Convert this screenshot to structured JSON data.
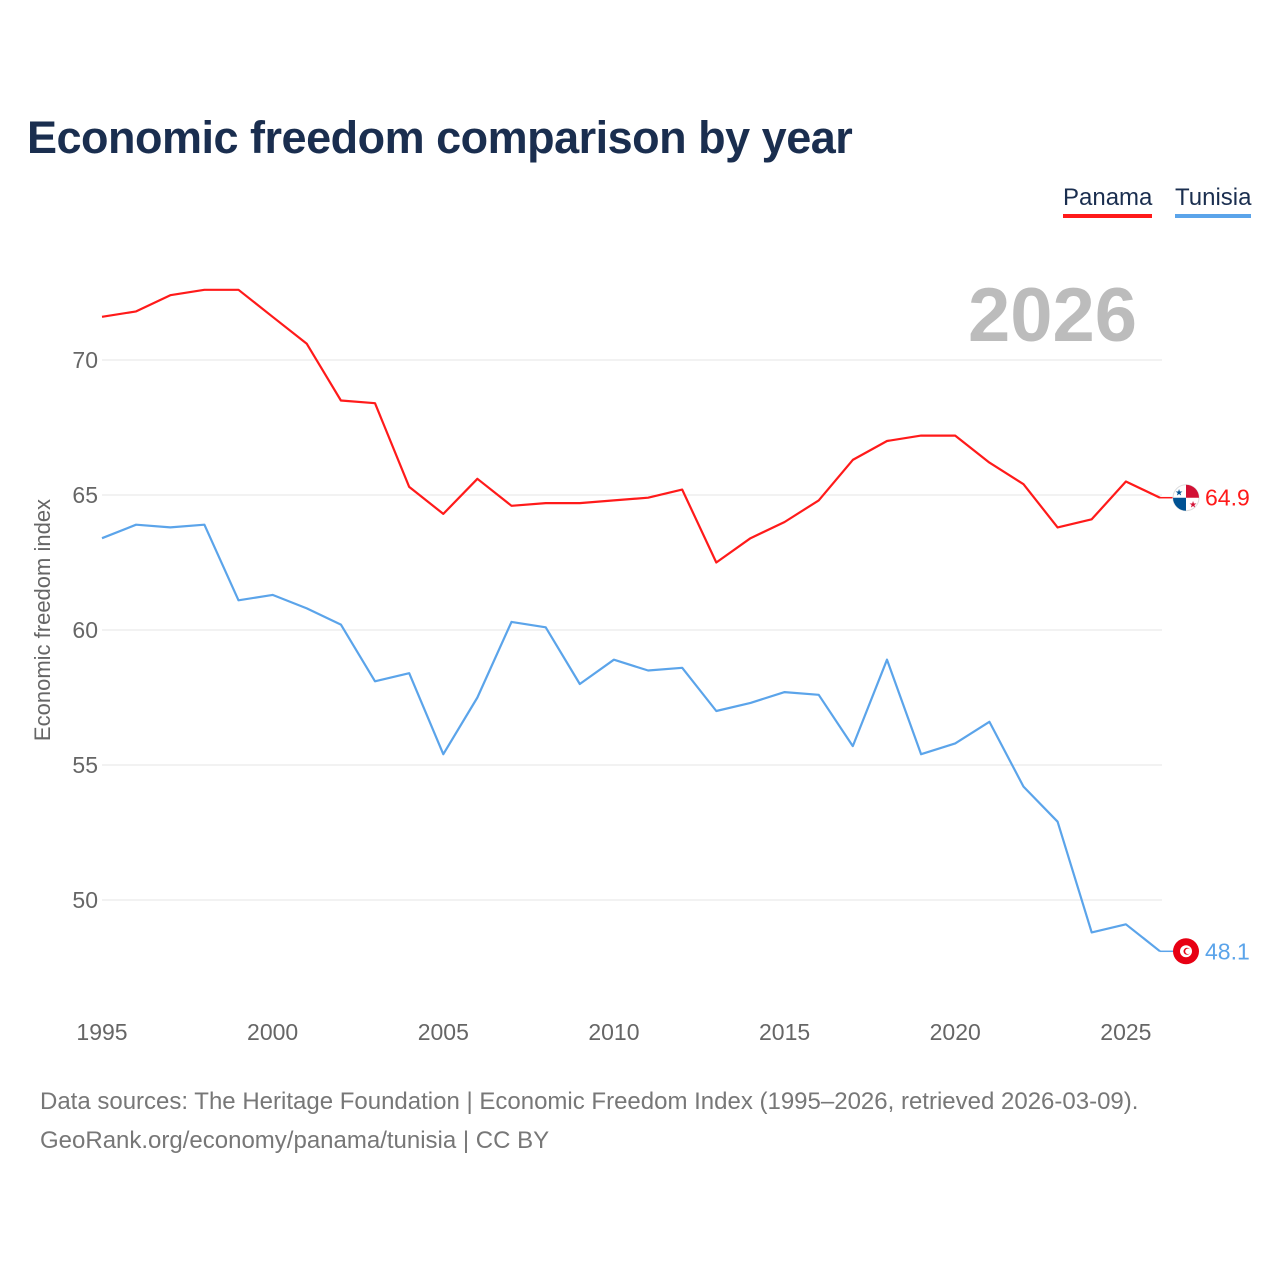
{
  "chart_data": {
    "type": "line",
    "title": "Economic freedom comparison by year",
    "ylabel": "Economic freedom index",
    "xlabel": "",
    "current_year": "2026",
    "x": [
      1995,
      1996,
      1997,
      1998,
      1999,
      2000,
      2001,
      2002,
      2003,
      2004,
      2005,
      2006,
      2007,
      2008,
      2009,
      2010,
      2011,
      2012,
      2013,
      2014,
      2015,
      2016,
      2017,
      2018,
      2019,
      2020,
      2021,
      2022,
      2023,
      2024,
      2025,
      2026
    ],
    "xlim": [
      1995,
      2026
    ],
    "ylim": [
      46,
      73.5
    ],
    "xticks": [
      "1995",
      "2000",
      "2005",
      "2010",
      "2015",
      "2020",
      "2025"
    ],
    "yticks": [
      "50",
      "55",
      "60",
      "65",
      "70"
    ],
    "grid": true,
    "legend_position": "top-right",
    "series": [
      {
        "name": "Panama",
        "color": "#ff1a1a",
        "end_label": "64.9",
        "values": [
          71.6,
          71.8,
          72.4,
          72.6,
          72.6,
          71.6,
          70.6,
          68.5,
          68.4,
          65.3,
          64.3,
          65.6,
          64.6,
          64.7,
          64.7,
          64.8,
          64.9,
          65.2,
          62.5,
          63.4,
          64.0,
          64.8,
          66.3,
          67.0,
          67.2,
          67.2,
          66.2,
          65.4,
          63.8,
          64.1,
          65.5,
          64.9
        ]
      },
      {
        "name": "Tunisia",
        "color": "#5ba4ea",
        "end_label": "48.1",
        "values": [
          63.4,
          63.9,
          63.8,
          63.9,
          61.1,
          61.3,
          60.8,
          60.2,
          58.1,
          58.4,
          55.4,
          57.5,
          60.3,
          60.1,
          58.0,
          58.9,
          58.5,
          58.6,
          57.0,
          57.3,
          57.7,
          57.6,
          55.7,
          58.9,
          55.4,
          55.8,
          56.6,
          54.2,
          52.9,
          48.8,
          49.1,
          48.1
        ]
      }
    ]
  },
  "footer": {
    "sources": "Data sources: The Heritage Foundation | Economic Freedom Index (1995–2026, retrieved 2026-03-09).",
    "credit": "GeoRank.org/economy/panama/tunisia | CC BY"
  }
}
